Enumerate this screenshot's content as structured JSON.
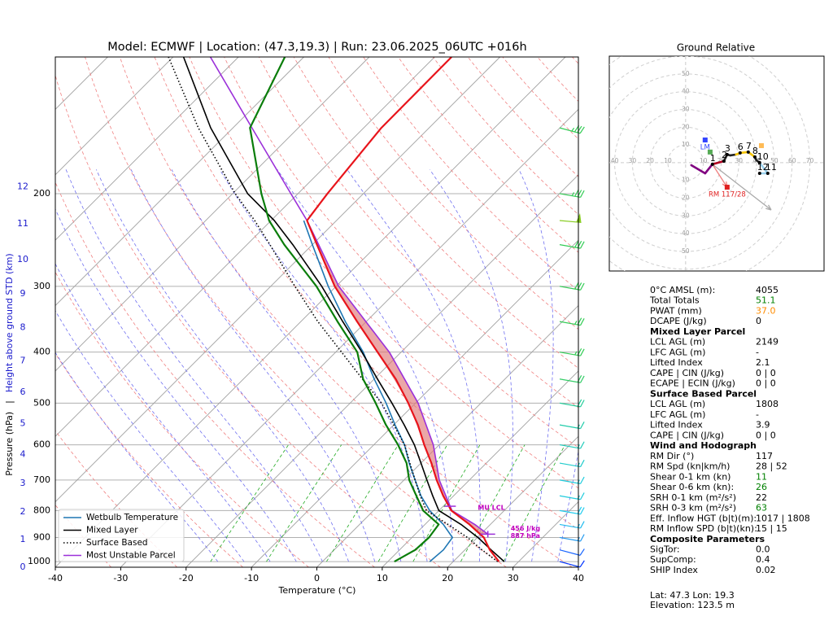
{
  "chart_data": [
    {
      "type": "skewt",
      "title": "Model: ECMWF | Location: (47.3,19.3) | Run: 23.06.2025_06UTC +016h",
      "xlabel": "Temperature (°C)",
      "ylabel": "Pressure (hPa)",
      "separator": "|",
      "y2label": "Height above ground STD (km)",
      "xlim": [
        -40,
        40
      ],
      "xticks": [
        -40,
        -30,
        -20,
        -10,
        0,
        10,
        20,
        30,
        40
      ],
      "ylim": [
        1025,
        110
      ],
      "yticks": [
        1000,
        900,
        800,
        700,
        600,
        500,
        400,
        300,
        200
      ],
      "log_y": true,
      "grid": true,
      "height_ticks": [
        0,
        1,
        2,
        3,
        4,
        5,
        6,
        7,
        8,
        9,
        10,
        11,
        12
      ],
      "height_tick_pressures": [
        1025,
        908.5,
        805,
        711,
        626,
        547,
        477,
        416,
        359,
        310,
        267,
        228,
        194
      ],
      "height_color": "#1a1acc",
      "temperature": {
        "color": "#e8141b",
        "pressure": [
          1000,
          950,
          900,
          850,
          800,
          750,
          700,
          650,
          600,
          550,
          500,
          450,
          400,
          350,
          300,
          250,
          225,
          200,
          150,
          110
        ],
        "values": [
          27,
          23.8,
          21.0,
          16.8,
          11.9,
          8.4,
          5.0,
          1.6,
          -2.3,
          -6.3,
          -11.1,
          -16.7,
          -23.6,
          -31.4,
          -40.2,
          -49.3,
          -54.5,
          -55.5,
          -57.3,
          -57.4
        ]
      },
      "dewpoint": {
        "color": "#0a7d0a",
        "pressure": [
          1000,
          950,
          900,
          850,
          800,
          750,
          700,
          650,
          600,
          550,
          500,
          450,
          400,
          350,
          300,
          250,
          225,
          200,
          150,
          110
        ],
        "values": [
          11.0,
          12.4,
          12.6,
          12.1,
          7.6,
          4.3,
          0.8,
          -2.2,
          -6.3,
          -11.2,
          -16.1,
          -21.7,
          -26.7,
          -34.4,
          -43.0,
          -54.3,
          -60.3,
          -65.6,
          -77.4,
          -82.9
        ]
      },
      "series": [
        {
          "name": "Wetbulb Temperature",
          "color": "#1f77b4",
          "style": "solid",
          "pressure": [
            1000,
            950,
            900,
            850,
            800,
            750,
            700,
            650,
            600,
            550,
            500,
            450,
            400,
            350,
            300,
            250,
            225
          ],
          "values": [
            16.4,
            16.7,
            16.2,
            12.8,
            8.6,
            5.0,
            1.7,
            -1.8,
            -5.3,
            -9.8,
            -14.5,
            -20.0,
            -25.8,
            -33.2,
            -41.2,
            -50,
            -55
          ]
        },
        {
          "name": "Mixed Layer",
          "color": "#000000",
          "style": "solid",
          "pressure": [
            1000,
            950,
            900,
            850,
            800,
            750,
            700,
            650,
            600,
            550,
            500,
            450,
            400,
            350,
            300,
            250,
            225,
            200,
            150,
            110
          ],
          "values": [
            27.8,
            24.0,
            20.1,
            15.5,
            10.0,
            6.8,
            3.5,
            0,
            -3.8,
            -8.4,
            -13.6,
            -19.5,
            -26.0,
            -33.6,
            -42.2,
            -53,
            -59.5,
            -67.7,
            -83.4,
            -98.4
          ]
        },
        {
          "name": "Surface Based",
          "color": "#000000",
          "style": "dotted",
          "pressure": [
            1000,
            950,
            900,
            850,
            800,
            750,
            700,
            650,
            600,
            550,
            500,
            450,
            400,
            350,
            300,
            250,
            225,
            200,
            150,
            110
          ],
          "values": [
            26.8,
            22.6,
            18.5,
            13.5,
            8.1,
            4.9,
            1.7,
            -1.7,
            -5.3,
            -10,
            -15.2,
            -21.8,
            -29.1,
            -37.4,
            -46.3,
            -56.5,
            -62.5,
            -69.6,
            -85.3,
            -100.7
          ]
        },
        {
          "name": "Most Unstable Parcel",
          "color": "#9b30d9",
          "style": "solid",
          "pressure": [
            887,
            850,
            800,
            700,
            600,
            500,
            400,
            300,
            225,
            200,
            150,
            110
          ],
          "values": [
            21.1,
            17.6,
            12.0,
            5.4,
            -0.9,
            -9.6,
            -21.8,
            -39.6,
            -54.5,
            -61.1,
            -77.1,
            -94.3
          ]
        }
      ],
      "cape_fill": "#e07878",
      "legend": "lower left",
      "mu_lcl": {
        "label": "MU LCL",
        "pressure": 785
      },
      "mu_info": [
        "456 J/kg",
        "887 hPa"
      ],
      "annotation_color": "#c000c0",
      "wind": {
        "pressure": [
          150,
          200,
          225,
          250,
          300,
          350,
          400,
          450,
          500,
          550,
          600,
          650,
          700,
          750,
          800,
          850,
          900,
          950,
          1000
        ],
        "speed": [
          35,
          35,
          50,
          30,
          30,
          25,
          25,
          20,
          20,
          15,
          15,
          15,
          15,
          15,
          20,
          15,
          15,
          10,
          10
        ],
        "direction": [
          105,
          100,
          95,
          100,
          100,
          100,
          100,
          100,
          100,
          100,
          100,
          100,
          100,
          100,
          100,
          100,
          100,
          105,
          105
        ],
        "colors": [
          "#33cc55",
          "#33cc55",
          "#88cc22",
          "#33cc55",
          "#33cc55",
          "#33cc55",
          "#33cc55",
          "#33cc66",
          "#22cc99",
          "#22ccaa",
          "#22ccbb",
          "#22cccc",
          "#22ccdd",
          "#22ccdd",
          "#22ccee",
          "#22bbee",
          "#2299ee",
          "#1a66ff",
          "#0033ff"
        ]
      }
    },
    {
      "type": "hodograph",
      "title": "Ground Relative",
      "xlim": [
        -43,
        78
      ],
      "ylim": [
        -61,
        60
      ],
      "rings": [
        10,
        20,
        30,
        40,
        50,
        60,
        70
      ],
      "u": [
        3.2,
        11.0,
        15.1,
        21.6,
        23.4,
        25.2,
        28.4,
        30.7,
        35.3,
        39.0,
        39.9,
        41.7,
        46.3,
        41.7
      ],
      "v": [
        -1.4,
        -6.0,
        -0.9,
        0.9,
        4.6,
        4.1,
        4.6,
        5.5,
        6.0,
        3.2,
        1.4,
        0,
        -6.0,
        -6.0
      ],
      "labels": [
        null,
        null,
        1,
        2,
        3,
        null,
        null,
        6,
        7,
        8,
        null,
        10,
        11,
        12
      ],
      "segment_colors": [
        "#800080",
        "#800080",
        "#b00020",
        "#202020",
        "#202020",
        "#202020",
        "#f5c400",
        "#f5c400",
        "#f5c400",
        "#202020",
        "#202020",
        "#9ad0ec",
        "#9ad0ec"
      ],
      "markers": [
        {
          "label": "LM",
          "u": 11,
          "v": 12.8,
          "color": "#3344ff"
        },
        {
          "label": "RM 117/28",
          "u": 23.4,
          "v": -13.8,
          "color": "#e02020"
        },
        {
          "u": 13.8,
          "v": 6,
          "color": "#55aa55"
        },
        {
          "u": 42.7,
          "v": 9.6,
          "color": "#ffbb55"
        }
      ],
      "arrows": [
        {
          "u": [
            15.1,
            48.2
          ],
          "v": [
            -0.9,
            -26.6
          ],
          "color": "#aaaaaa"
        },
        {
          "u": [
            15.1,
            23.4
          ],
          "v": [
            -0.9,
            -13.8
          ],
          "color": "#f08080"
        }
      ]
    }
  ],
  "parameters": [
    {
      "rows": [
        {
          "label": "0°C AMSL (m):",
          "value": "4055"
        },
        {
          "label": "Total Totals",
          "value": "51.1",
          "color": "#008000"
        },
        {
          "label": "PWAT (mm)",
          "value": "37.0",
          "color": "#ff8c00"
        },
        {
          "label": "DCAPE (J/kg)",
          "value": "0"
        }
      ]
    },
    {
      "title": "Mixed Layer Parcel",
      "rows": [
        {
          "label": "LCL AGL (m)",
          "value": "2149"
        },
        {
          "label": "LFC AGL (m)",
          "value": "-"
        },
        {
          "label": "Lifted Index",
          "value": "2.1"
        },
        {
          "label": "CAPE | CIN (J/kg)",
          "value": "0  | 0"
        },
        {
          "label": "ECAPE | ECIN (J/kg)",
          "value": "0  | 0"
        }
      ]
    },
    {
      "title": "Surface Based Parcel",
      "rows": [
        {
          "label": "LCL AGL (m)",
          "value": "1808"
        },
        {
          "label": "LFC AGL (m)",
          "value": "-"
        },
        {
          "label": "Lifted Index",
          "value": "3.9"
        },
        {
          "label": "CAPE | CIN (J/kg)",
          "value": "0  | 0"
        }
      ]
    },
    {
      "title": "Wind and Hodograph",
      "rows": [
        {
          "label": "RM Dir (°)",
          "value": "117"
        },
        {
          "label": "RM Spd (kn|km/h)",
          "value": "28 | 52"
        },
        {
          "label": "Shear 0-1 km (kn)",
          "value": "11",
          "color": "#008000"
        },
        {
          "label": "Shear 0-6 km (kn):",
          "value": "26",
          "color": "#008000"
        },
        {
          "label": "SRH 0-1 km (m²/s²)",
          "value": "22"
        },
        {
          "label": "SRH 0-3 km (m²/s²)",
          "value": "63",
          "color": "#008000"
        },
        {
          "label": "Eff. Inflow HGT (b|t)(m):",
          "value": "1017 | 1808"
        },
        {
          "label": "RM Inflow SPD (b|t)(kn):",
          "value": "15 | 15"
        }
      ]
    },
    {
      "title": "Composite Parameters",
      "rows": [
        {
          "label": "SigTor:",
          "value": "0.0"
        },
        {
          "label": "SupComp:",
          "value": "0.4"
        },
        {
          "label": "SHIP Index",
          "value": "0.02"
        }
      ]
    }
  ],
  "footer": [
    "Lat: 47.3  Lon: 19.3",
    "Elevation: 123.5 m"
  ]
}
